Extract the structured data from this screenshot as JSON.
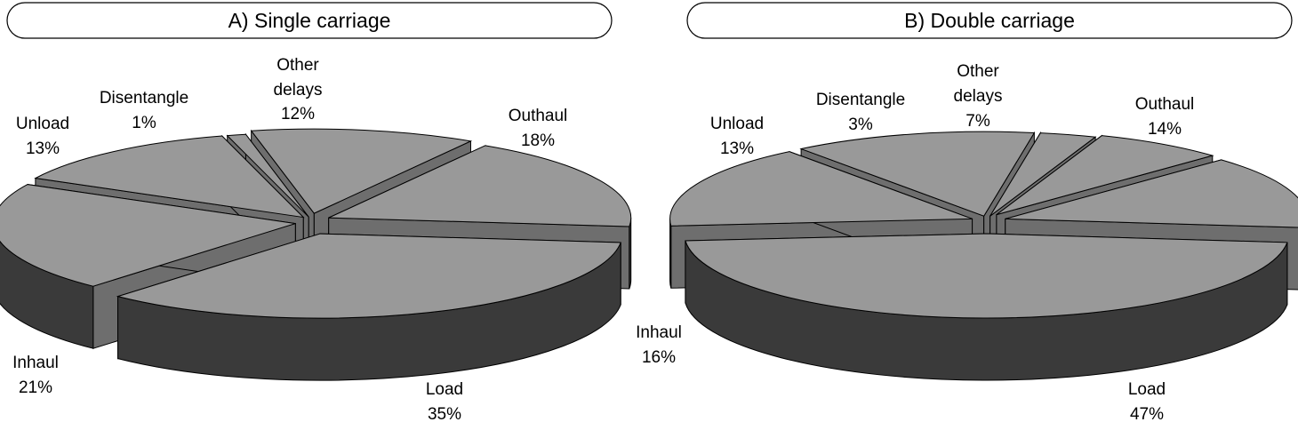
{
  "chart_data": [
    {
      "type": "pie",
      "style": "3d-exploded",
      "title": "A) Single carriage",
      "series": [
        {
          "name": "Load",
          "value": 35,
          "label": "Load",
          "pct_label": "35%"
        },
        {
          "name": "Inhaul",
          "value": 21,
          "label": "Inhaul",
          "pct_label": "21%"
        },
        {
          "name": "Unload",
          "value": 13,
          "label": "Unload",
          "pct_label": "13%"
        },
        {
          "name": "Disentangle",
          "value": 1,
          "label": "Disentangle",
          "pct_label": "1%"
        },
        {
          "name": "Other delays",
          "value": 12,
          "label": "Other delays",
          "pct_label": "12%"
        },
        {
          "name": "Outhaul",
          "value": 18,
          "label": "Outhaul",
          "pct_label": "18%"
        }
      ]
    },
    {
      "type": "pie",
      "style": "3d-exploded",
      "title": "B) Double carriage",
      "series": [
        {
          "name": "Load",
          "value": 47,
          "label": "Load",
          "pct_label": "47%"
        },
        {
          "name": "Inhaul",
          "value": 16,
          "label": "Inhaul",
          "pct_label": "16%"
        },
        {
          "name": "Unload",
          "value": 13,
          "label": "Unload",
          "pct_label": "13%"
        },
        {
          "name": "Disentangle",
          "value": 3,
          "label": "Disentangle",
          "pct_label": "3%"
        },
        {
          "name": "Other delays",
          "value": 7,
          "label": "Other delays",
          "pct_label": "7%"
        },
        {
          "name": "Outhaul",
          "value": 14,
          "label": "Outhaul",
          "pct_label": "14%"
        }
      ]
    }
  ],
  "colors": {
    "top": "#999999",
    "side": "#3a3a3a",
    "side_light": "#6e6e6e",
    "edge": "#000000"
  }
}
